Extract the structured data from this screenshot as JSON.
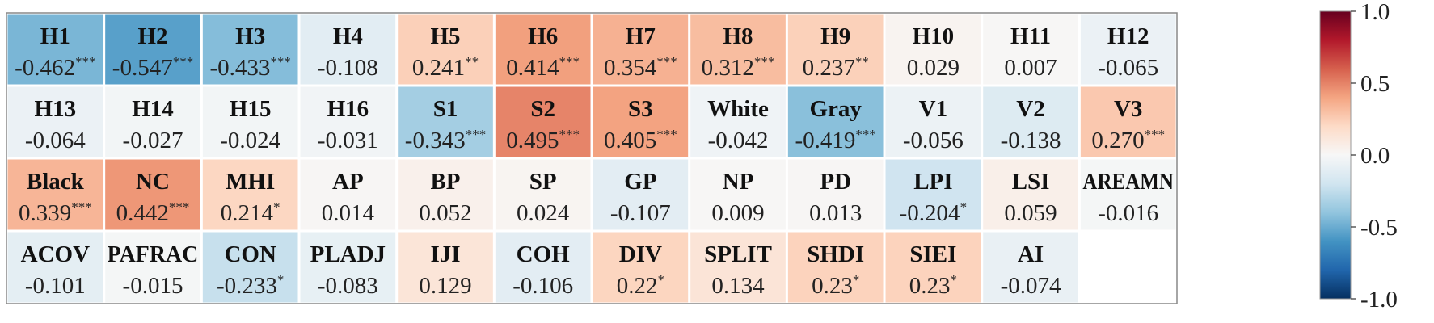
{
  "chart_data": {
    "type": "heatmap",
    "title": "",
    "cells": [
      {
        "label": "H1",
        "value": "-0.462",
        "sig": "***"
      },
      {
        "label": "H2",
        "value": "-0.547",
        "sig": "***"
      },
      {
        "label": "H3",
        "value": "-0.433",
        "sig": "***"
      },
      {
        "label": "H4",
        "value": "-0.108",
        "sig": ""
      },
      {
        "label": "H5",
        "value": "0.241",
        "sig": "**"
      },
      {
        "label": "H6",
        "value": "0.414",
        "sig": "***"
      },
      {
        "label": "H7",
        "value": "0.354",
        "sig": "***"
      },
      {
        "label": "H8",
        "value": "0.312",
        "sig": "***"
      },
      {
        "label": "H9",
        "value": "0.237",
        "sig": "**"
      },
      {
        "label": "H10",
        "value": "0.029",
        "sig": ""
      },
      {
        "label": "H11",
        "value": "0.007",
        "sig": ""
      },
      {
        "label": "H12",
        "value": "-0.065",
        "sig": ""
      },
      {
        "label": "H13",
        "value": "-0.064",
        "sig": ""
      },
      {
        "label": "H14",
        "value": "-0.027",
        "sig": ""
      },
      {
        "label": "H15",
        "value": "-0.024",
        "sig": ""
      },
      {
        "label": "H16",
        "value": "-0.031",
        "sig": ""
      },
      {
        "label": "S1",
        "value": "-0.343",
        "sig": "***"
      },
      {
        "label": "S2",
        "value": "0.495",
        "sig": "***"
      },
      {
        "label": "S3",
        "value": "0.405",
        "sig": "***"
      },
      {
        "label": "White",
        "value": "-0.042",
        "sig": ""
      },
      {
        "label": "Gray",
        "value": "-0.419",
        "sig": "***"
      },
      {
        "label": "V1",
        "value": "-0.056",
        "sig": ""
      },
      {
        "label": "V2",
        "value": "-0.138",
        "sig": ""
      },
      {
        "label": "V3",
        "value": "0.270",
        "sig": "***"
      },
      {
        "label": "Black",
        "value": "0.339",
        "sig": "***"
      },
      {
        "label": "NC",
        "value": "0.442",
        "sig": "***"
      },
      {
        "label": "MHI",
        "value": "0.214",
        "sig": "*"
      },
      {
        "label": "AP",
        "value": "0.014",
        "sig": ""
      },
      {
        "label": "BP",
        "value": "0.052",
        "sig": ""
      },
      {
        "label": "SP",
        "value": "0.024",
        "sig": ""
      },
      {
        "label": "GP",
        "value": "-0.107",
        "sig": ""
      },
      {
        "label": "NP",
        "value": "0.009",
        "sig": ""
      },
      {
        "label": "PD",
        "value": "0.013",
        "sig": ""
      },
      {
        "label": "LPI",
        "value": "-0.204",
        "sig": "*"
      },
      {
        "label": "LSI",
        "value": "0.059",
        "sig": ""
      },
      {
        "label": "AREAMN",
        "value": "-0.016",
        "sig": ""
      },
      {
        "label": "ACOV",
        "value": "-0.101",
        "sig": ""
      },
      {
        "label": "PAFRAC",
        "value": "-0.015",
        "sig": ""
      },
      {
        "label": "CON",
        "value": "-0.233",
        "sig": "*"
      },
      {
        "label": "PLADJ",
        "value": "-0.083",
        "sig": ""
      },
      {
        "label": "IJI",
        "value": "0.129",
        "sig": ""
      },
      {
        "label": "COH",
        "value": "-0.106",
        "sig": ""
      },
      {
        "label": "DIV",
        "value": "0.22",
        "sig": "*"
      },
      {
        "label": "SPLIT",
        "value": "0.134",
        "sig": ""
      },
      {
        "label": "SHDI",
        "value": "0.23",
        "sig": "*"
      },
      {
        "label": "SIEI",
        "value": "0.23",
        "sig": "*"
      },
      {
        "label": "AI",
        "value": "-0.074",
        "sig": ""
      }
    ],
    "colorbar": {
      "range": [
        -1.0,
        1.0
      ],
      "ticks": [
        "1.0",
        "0.5",
        "0.0",
        "-0.5",
        "-1.0"
      ],
      "colormap": "RdBu_r",
      "low_color": "#2166ac",
      "mid_color": "#f7f7f7",
      "high_color": "#b2182b"
    }
  }
}
